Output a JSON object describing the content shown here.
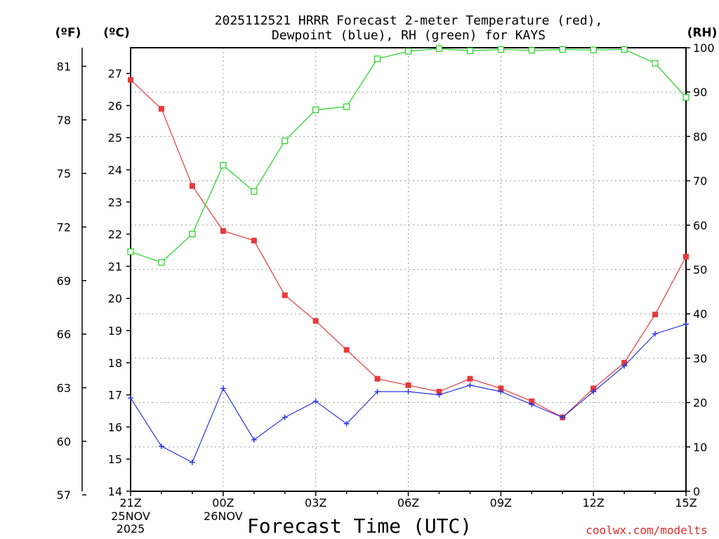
{
  "chart_data": {
    "type": "line",
    "title_line1": "2025112521 HRRR Forecast 2-meter Temperature (red),",
    "title_line2": "Dewpoint (blue), RH (green) for KAYS",
    "left_outer_unit": "(ºF)",
    "left_inner_unit": "(ºC)",
    "right_unit": "(RH)",
    "xlabel": "Forecast Time (UTC)",
    "credit": "coolwx.com/modelts",
    "x_hours": [
      0,
      1,
      2,
      3,
      4,
      5,
      6,
      7,
      8,
      9,
      10,
      11,
      12,
      13,
      14,
      15,
      16,
      17,
      18
    ],
    "x_ticks": [
      {
        "hour": 0,
        "label": "21Z"
      },
      {
        "hour": 3,
        "label": "00Z"
      },
      {
        "hour": 6,
        "label": "03Z"
      },
      {
        "hour": 9,
        "label": "06Z"
      },
      {
        "hour": 12,
        "label": "09Z"
      },
      {
        "hour": 15,
        "label": "12Z"
      },
      {
        "hour": 18,
        "label": "15Z"
      }
    ],
    "date_labels": [
      {
        "hour": 0,
        "lines": [
          "25NOV",
          "2025"
        ]
      },
      {
        "hour": 3,
        "lines": [
          "26NOV"
        ]
      }
    ],
    "celsius_axis": {
      "range": [
        14,
        27.8
      ],
      "ticks": [
        14,
        15,
        16,
        17,
        18,
        19,
        20,
        21,
        22,
        23,
        24,
        25,
        26,
        27
      ]
    },
    "fahrenheit_axis": {
      "ticks": [
        57,
        60,
        63,
        66,
        69,
        72,
        75,
        78,
        81
      ]
    },
    "rh_axis": {
      "range": [
        0,
        100
      ],
      "ticks": [
        0,
        10,
        20,
        30,
        40,
        50,
        60,
        70,
        80,
        90,
        100
      ]
    },
    "series": [
      {
        "name": "2-meter Temperature",
        "axis": "celsius",
        "color": "#e8393b",
        "marker": "filled-square",
        "values": [
          26.8,
          25.9,
          23.5,
          22.1,
          21.8,
          20.1,
          19.3,
          18.4,
          17.5,
          17.3,
          17.1,
          17.5,
          17.2,
          16.8,
          16.3,
          17.2,
          18.0,
          19.5,
          21.3
        ]
      },
      {
        "name": "Dewpoint",
        "axis": "celsius",
        "color": "#2a36e0",
        "marker": "plus",
        "values": [
          16.9,
          15.4,
          14.9,
          17.2,
          15.6,
          16.3,
          16.8,
          16.1,
          17.1,
          17.1,
          17.0,
          17.3,
          17.1,
          16.7,
          16.3,
          17.1,
          17.9,
          18.9,
          19.2
        ]
      },
      {
        "name": "RH",
        "axis": "rh",
        "color": "#1fd41f",
        "marker": "open-square",
        "values": [
          54,
          51.6,
          58,
          73.5,
          67.6,
          79,
          86,
          86.7,
          97.5,
          99.2,
          99.8,
          99.3,
          99.6,
          99.4,
          99.6,
          99.5,
          99.6,
          96.5,
          88.8
        ]
      }
    ]
  }
}
